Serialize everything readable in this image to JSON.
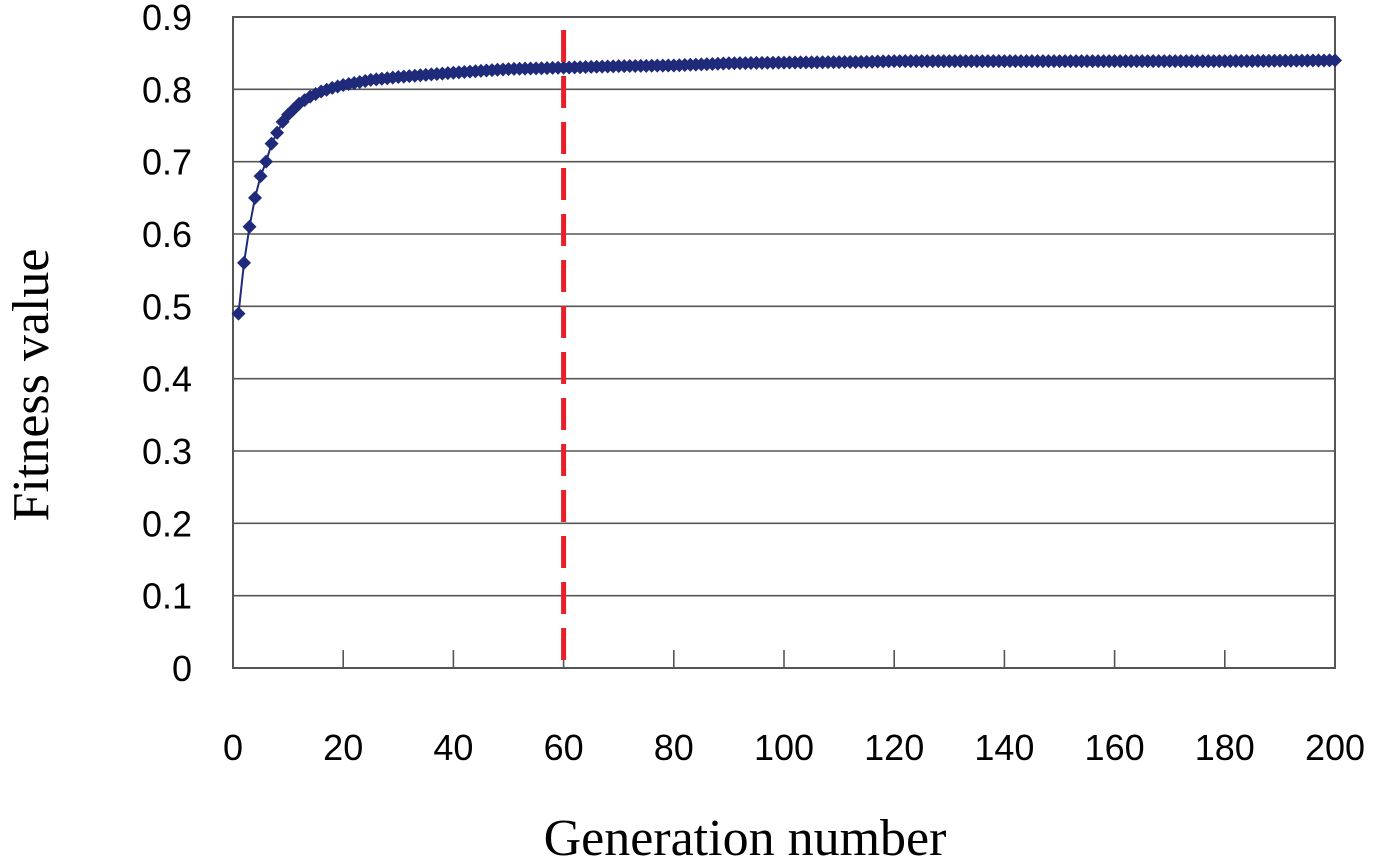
{
  "chart_data": {
    "type": "line",
    "xlabel": "Generation number",
    "ylabel": "Fitness value",
    "xlim": [
      0,
      200
    ],
    "ylim": [
      0,
      0.9
    ],
    "xticks": [
      "0",
      "20",
      "40",
      "60",
      "80",
      "100",
      "120",
      "140",
      "160",
      "180",
      "200"
    ],
    "yticks": [
      "0",
      "0.1",
      "0.2",
      "0.3",
      "0.4",
      "0.5",
      "0.6",
      "0.7",
      "0.8",
      "0.9"
    ],
    "grid": "horizontal",
    "legend": "none",
    "marker_line_x": 60,
    "colors": {
      "series": "#1f2a7a",
      "marker_line": "#e8202a",
      "grid": "#555555"
    },
    "series": [
      {
        "x": [
          1,
          2,
          3,
          4,
          5,
          6,
          7,
          8,
          9,
          10,
          12,
          14,
          16,
          18,
          20,
          25,
          30,
          35,
          40,
          50,
          60,
          70,
          80,
          90,
          100,
          115,
          120,
          140,
          160,
          180,
          200
        ],
        "values": [
          0.49,
          0.56,
          0.61,
          0.65,
          0.68,
          0.7,
          0.725,
          0.74,
          0.755,
          0.765,
          0.78,
          0.79,
          0.797,
          0.802,
          0.806,
          0.813,
          0.817,
          0.82,
          0.823,
          0.828,
          0.83,
          0.832,
          0.833,
          0.836,
          0.837,
          0.838,
          0.839,
          0.839,
          0.839,
          0.839,
          0.84
        ]
      }
    ]
  }
}
